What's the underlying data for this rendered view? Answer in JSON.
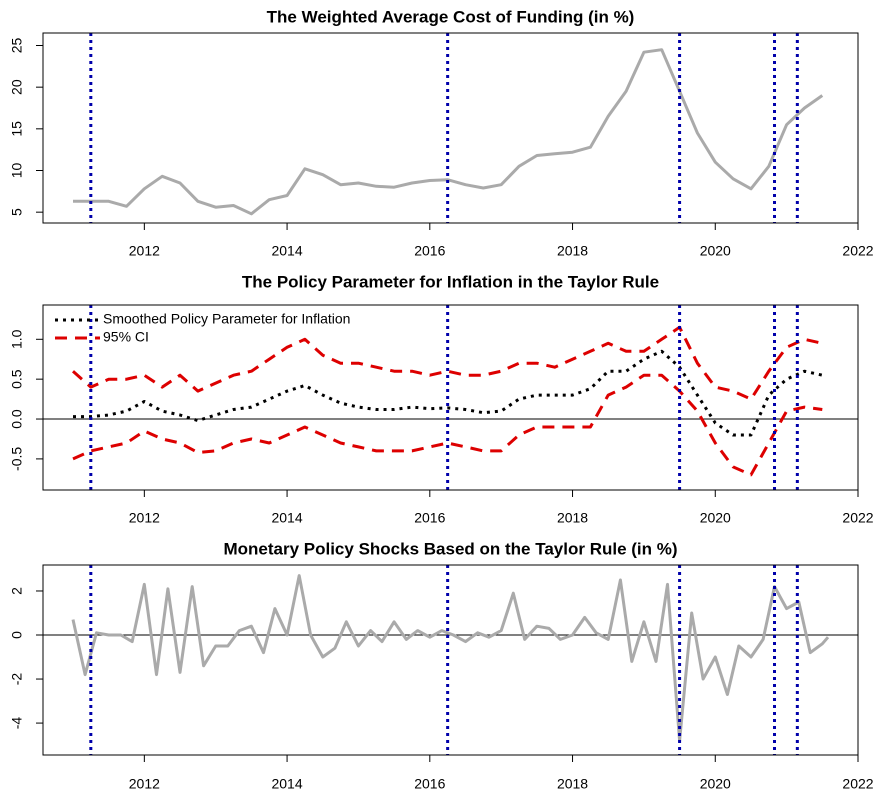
{
  "chart_data": [
    {
      "type": "line",
      "title": "The Weighted Average Cost of Funding (in %)",
      "x": [
        2011.0,
        2011.25,
        2011.5,
        2011.75,
        2012.0,
        2012.25,
        2012.5,
        2012.75,
        2013.0,
        2013.25,
        2013.5,
        2013.75,
        2014.0,
        2014.25,
        2014.5,
        2014.75,
        2015.0,
        2015.25,
        2015.5,
        2015.75,
        2016.0,
        2016.25,
        2016.5,
        2016.75,
        2017.0,
        2017.25,
        2017.5,
        2017.75,
        2018.0,
        2018.25,
        2018.5,
        2018.75,
        2019.0,
        2019.25,
        2019.5,
        2019.75,
        2020.0,
        2020.25,
        2020.5,
        2020.75,
        2021.0,
        2021.25,
        2021.5
      ],
      "series": [
        {
          "color": "#aaaaaa",
          "linestyle": "solid",
          "values": [
            6.3,
            6.3,
            6.3,
            5.7,
            7.8,
            9.3,
            8.5,
            6.3,
            5.6,
            5.8,
            4.8,
            6.5,
            7.0,
            10.2,
            9.5,
            8.3,
            8.5,
            8.1,
            8.0,
            8.5,
            8.8,
            8.9,
            8.3,
            7.9,
            8.3,
            10.5,
            11.8,
            12.0,
            12.2,
            12.8,
            16.5,
            19.5,
            24.2,
            24.5,
            19.5,
            14.5,
            11.0,
            9.0,
            7.8,
            10.5,
            15.5,
            17.5,
            19.0
          ]
        }
      ],
      "vlines": [
        2011.25,
        2016.25,
        2019.5,
        2020.83,
        2021.15
      ],
      "vline_color": "#0000aa",
      "xlim": [
        2010.58,
        2022.0
      ],
      "xticks": [
        2012,
        2014,
        2016,
        2018,
        2020,
        2022
      ],
      "ylim": [
        3.7,
        26.5
      ],
      "yticks": [
        5,
        10,
        15,
        20,
        25
      ]
    },
    {
      "type": "line",
      "title": "The Policy Parameter for Inflation in the Taylor Rule",
      "x": [
        2011.0,
        2011.25,
        2011.5,
        2011.75,
        2012.0,
        2012.25,
        2012.5,
        2012.75,
        2013.0,
        2013.25,
        2013.5,
        2013.75,
        2014.0,
        2014.25,
        2014.5,
        2014.75,
        2015.0,
        2015.25,
        2015.5,
        2015.75,
        2016.0,
        2016.25,
        2016.5,
        2016.75,
        2017.0,
        2017.25,
        2017.5,
        2017.75,
        2018.0,
        2018.25,
        2018.5,
        2018.75,
        2019.0,
        2019.25,
        2019.5,
        2019.75,
        2020.0,
        2020.25,
        2020.5,
        2020.75,
        2021.0,
        2021.25,
        2021.5
      ],
      "series": [
        {
          "name": "Smoothed Policy Parameter for Inflation",
          "color": "#000000",
          "linestyle": "dotted",
          "values": [
            0.03,
            0.03,
            0.05,
            0.1,
            0.22,
            0.1,
            0.05,
            -0.02,
            0.05,
            0.12,
            0.15,
            0.25,
            0.35,
            0.42,
            0.3,
            0.2,
            0.15,
            0.12,
            0.12,
            0.15,
            0.13,
            0.14,
            0.12,
            0.08,
            0.1,
            0.25,
            0.3,
            0.3,
            0.3,
            0.38,
            0.6,
            0.6,
            0.75,
            0.85,
            0.65,
            0.3,
            -0.05,
            -0.2,
            -0.2,
            0.3,
            0.5,
            0.6,
            0.55
          ]
        },
        {
          "name": "95% CI",
          "color": "#dd0000",
          "linestyle": "dashed",
          "upper": [
            0.6,
            0.4,
            0.5,
            0.5,
            0.55,
            0.4,
            0.55,
            0.35,
            0.45,
            0.55,
            0.6,
            0.75,
            0.9,
            1.0,
            0.8,
            0.7,
            0.7,
            0.65,
            0.6,
            0.6,
            0.55,
            0.6,
            0.55,
            0.55,
            0.6,
            0.7,
            0.7,
            0.65,
            0.75,
            0.85,
            0.95,
            0.85,
            0.85,
            1.0,
            1.15,
            0.7,
            0.4,
            0.35,
            0.25,
            0.6,
            0.9,
            1.0,
            0.95
          ],
          "lower": [
            -0.5,
            -0.4,
            -0.35,
            -0.3,
            -0.15,
            -0.25,
            -0.3,
            -0.42,
            -0.4,
            -0.3,
            -0.25,
            -0.3,
            -0.2,
            -0.1,
            -0.2,
            -0.3,
            -0.35,
            -0.4,
            -0.4,
            -0.4,
            -0.35,
            -0.3,
            -0.35,
            -0.4,
            -0.4,
            -0.2,
            -0.1,
            -0.1,
            -0.1,
            -0.1,
            0.3,
            0.4,
            0.55,
            0.55,
            0.35,
            0.1,
            -0.3,
            -0.6,
            -0.7,
            -0.3,
            0.1,
            0.15,
            0.12
          ]
        }
      ],
      "legend": "topleft",
      "hline": 0,
      "vlines": [
        2011.25,
        2016.25,
        2019.5,
        2020.83,
        2021.15
      ],
      "vline_color": "#0000aa",
      "xlim": [
        2010.58,
        2022.0
      ],
      "xticks": [
        2012,
        2014,
        2016,
        2018,
        2020,
        2022
      ],
      "ylim": [
        -0.89,
        1.43
      ],
      "yticks": [
        {
          "value": -0.5,
          "label": "-0.5"
        },
        {
          "value": 0,
          "label": "0.0"
        },
        {
          "value": 0.5,
          "label": "0.5"
        },
        {
          "value": 1,
          "label": "1.0"
        }
      ]
    },
    {
      "type": "line",
      "title": "Monetary Policy Shocks Based on the Taylor Rule (in %)",
      "x": [
        2011.0,
        2011.17,
        2011.33,
        2011.5,
        2011.67,
        2011.83,
        2012.0,
        2012.17,
        2012.33,
        2012.5,
        2012.67,
        2012.83,
        2013.0,
        2013.17,
        2013.33,
        2013.5,
        2013.67,
        2013.83,
        2014.0,
        2014.17,
        2014.33,
        2014.5,
        2014.67,
        2014.83,
        2015.0,
        2015.17,
        2015.33,
        2015.5,
        2015.67,
        2015.83,
        2016.0,
        2016.17,
        2016.33,
        2016.5,
        2016.67,
        2016.83,
        2017.0,
        2017.17,
        2017.33,
        2017.5,
        2017.67,
        2017.83,
        2018.0,
        2018.17,
        2018.33,
        2018.5,
        2018.67,
        2018.83,
        2019.0,
        2019.17,
        2019.33,
        2019.5,
        2019.67,
        2019.83,
        2020.0,
        2020.17,
        2020.33,
        2020.5,
        2020.67,
        2020.83,
        2021.0,
        2021.17,
        2021.33,
        2021.5,
        2021.58
      ],
      "series": [
        {
          "color": "#aaaaaa",
          "linestyle": "solid",
          "values": [
            0.7,
            -1.8,
            0.1,
            0.0,
            0.0,
            -0.3,
            2.3,
            -1.8,
            2.1,
            -1.7,
            2.2,
            -1.4,
            -0.5,
            -0.5,
            0.2,
            0.4,
            -0.8,
            1.2,
            0.0,
            2.7,
            0.0,
            -1.0,
            -0.6,
            0.6,
            -0.5,
            0.2,
            -0.3,
            0.6,
            -0.2,
            0.2,
            -0.1,
            0.2,
            0.0,
            -0.3,
            0.1,
            -0.1,
            0.2,
            1.9,
            -0.2,
            0.4,
            0.3,
            -0.2,
            0.0,
            0.8,
            0.1,
            -0.2,
            2.5,
            -1.2,
            0.6,
            -1.2,
            2.3,
            -4.8,
            1.0,
            -2.0,
            -1.0,
            -2.7,
            -0.5,
            -1.0,
            -0.2,
            2.2,
            1.2,
            1.5,
            -0.8,
            -0.4,
            -0.1
          ]
        }
      ],
      "hline": 0,
      "vlines": [
        2011.25,
        2016.25,
        2019.5,
        2020.83,
        2021.15
      ],
      "vline_color": "#0000aa",
      "xlim": [
        2010.58,
        2022.0
      ],
      "xticks": [
        2012,
        2014,
        2016,
        2018,
        2020,
        2022
      ],
      "ylim": [
        -5.45,
        3.18
      ],
      "yticks": [
        -4,
        -2,
        0,
        2
      ]
    }
  ]
}
